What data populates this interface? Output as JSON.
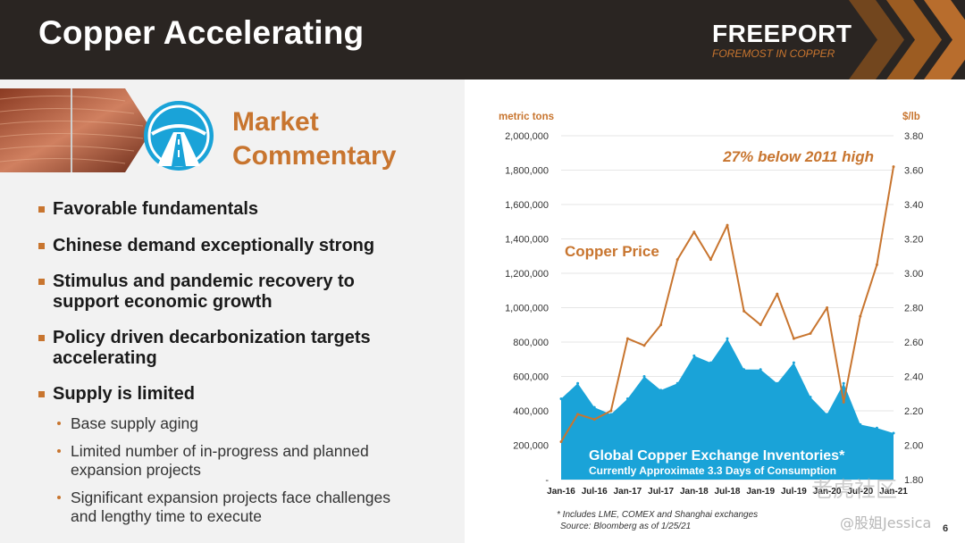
{
  "header": {
    "title": "Copper Accelerating",
    "brand": "FREEPORT",
    "brand_tagline": "FOREMOST IN COPPER"
  },
  "commentary": {
    "title_line1": "Market",
    "title_line2": "Commentary"
  },
  "bullets": [
    {
      "lines": [
        "Favorable fundamentals"
      ]
    },
    {
      "lines": [
        "Chinese demand exceptionally strong"
      ]
    },
    {
      "lines": [
        "Stimulus and pandemic recovery to",
        "support economic growth"
      ]
    },
    {
      "lines": [
        "Policy driven decarbonization targets",
        "accelerating"
      ]
    },
    {
      "lines": [
        "Supply is limited"
      ]
    }
  ],
  "sub_bullets": [
    {
      "lines": [
        "Base supply aging"
      ]
    },
    {
      "lines": [
        "Limited number of in-progress and planned",
        "expansion projects"
      ]
    },
    {
      "lines": [
        "Significant expansion projects face challenges",
        "and lengthy time to execute"
      ]
    }
  ],
  "chart_data": {
    "type": "area",
    "y_left_label": "metric tons",
    "y_right_label": "$/lb",
    "y_left_ticks": [
      "2,000,000",
      "1,800,000",
      "1,600,000",
      "1,400,000",
      "1,200,000",
      "1,000,000",
      "800,000",
      "600,000",
      "400,000",
      "200,000",
      "-"
    ],
    "y_left_lim": [
      0,
      2000000
    ],
    "y_right_ticks": [
      "3.80",
      "3.60",
      "3.40",
      "3.20",
      "3.00",
      "2.80",
      "2.60",
      "2.40",
      "2.20",
      "2.00",
      "1.80"
    ],
    "y_right_lim": [
      1.8,
      3.8
    ],
    "x_ticks": [
      "Jan-16",
      "Jul-16",
      "Jan-17",
      "Jul-17",
      "Jan-18",
      "Jul-18",
      "Jan-19",
      "Jul-19",
      "Jan-20",
      "Jul-20",
      "Jan-21"
    ],
    "x": [
      "Jan-16",
      "Apr-16",
      "Jul-16",
      "Oct-16",
      "Jan-17",
      "Apr-17",
      "Jul-17",
      "Oct-17",
      "Jan-18",
      "Apr-18",
      "Jul-18",
      "Oct-18",
      "Jan-19",
      "Apr-19",
      "Jul-19",
      "Oct-19",
      "Jan-20",
      "Apr-20",
      "Jul-20",
      "Oct-20",
      "Jan-21"
    ],
    "series": [
      {
        "name": "Global Copper Exchange Inventories",
        "axis": "left",
        "color": "#1aa3d8",
        "values": [
          470000,
          560000,
          420000,
          380000,
          470000,
          600000,
          520000,
          560000,
          720000,
          680000,
          820000,
          640000,
          640000,
          560000,
          680000,
          480000,
          380000,
          560000,
          320000,
          300000,
          270000
        ]
      },
      {
        "name": "Copper Price",
        "axis": "right",
        "color": "#c8752f",
        "values": [
          2.02,
          2.18,
          2.15,
          2.2,
          2.62,
          2.58,
          2.7,
          3.08,
          3.24,
          3.08,
          3.28,
          2.78,
          2.7,
          2.88,
          2.62,
          2.65,
          2.8,
          2.25,
          2.75,
          3.05,
          3.62
        ]
      }
    ],
    "annotations": {
      "price_label": "Copper Price",
      "high_label": "27% below 2011 high",
      "inv_label": "Global Copper Exchange Inventories*",
      "inv_sub": "Currently Approximate 3.3 Days of Consumption"
    },
    "footnotes": [
      "* Includes LME, COMEX and Shanghai exchanges",
      "Source: Bloomberg as of 1/25/21"
    ],
    "grid": true
  },
  "page_number": "6",
  "watermark": "老虎社区",
  "watermark2": "@股姐Jessica",
  "colors": {
    "accent": "#c8752f",
    "inventory": "#1aa3d8",
    "header_bg": "#2a2522"
  }
}
